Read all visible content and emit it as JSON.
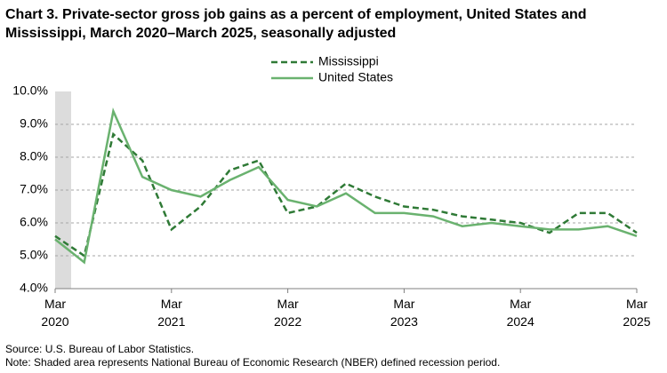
{
  "chart_data": {
    "type": "line",
    "title": "Chart 3. Private-sector gross job gains as a percent of employment, United States and Mississippi, March 2020–March 2025, seasonally adjusted",
    "categories": [
      "Mar\n2020",
      null,
      null,
      null,
      "Mar\n2021",
      null,
      null,
      null,
      "Mar\n2022",
      null,
      null,
      null,
      "Mar\n2023",
      null,
      null,
      null,
      "Mar\n2024",
      null,
      null,
      null,
      "Mar\n2025"
    ],
    "series": [
      {
        "name": "Mississippi",
        "color": "#2f7a36",
        "dashed": true,
        "values": [
          5.6,
          5.0,
          8.7,
          7.9,
          5.8,
          6.5,
          7.6,
          7.9,
          6.3,
          6.5,
          7.2,
          6.8,
          6.5,
          6.4,
          6.2,
          6.1,
          6.0,
          5.7,
          6.3,
          6.3,
          5.7
        ]
      },
      {
        "name": "United States",
        "color": "#6ab26f",
        "dashed": false,
        "values": [
          5.5,
          4.8,
          9.4,
          7.4,
          7.0,
          6.8,
          7.3,
          7.7,
          6.7,
          6.5,
          6.9,
          6.3,
          6.3,
          6.2,
          5.9,
          6.0,
          5.9,
          5.8,
          5.8,
          5.9,
          5.6
        ]
      }
    ],
    "ylim": [
      4,
      10
    ],
    "yticks": [
      {
        "value": 4,
        "label": "4.0%"
      },
      {
        "value": 5,
        "label": "5.0%"
      },
      {
        "value": 6,
        "label": "6.0%"
      },
      {
        "value": 7,
        "label": "7.0%"
      },
      {
        "value": 8,
        "label": "8.0%"
      },
      {
        "value": 9,
        "label": "9.0%"
      },
      {
        "value": 10,
        "label": "10.0%"
      }
    ],
    "grid": true,
    "legend": "top",
    "source": "Source: U.S. Bureau of Labor Statistics.",
    "note": "Note: Shaded area represents National Bureau of Economic Research (NBER) defined recession period."
  }
}
